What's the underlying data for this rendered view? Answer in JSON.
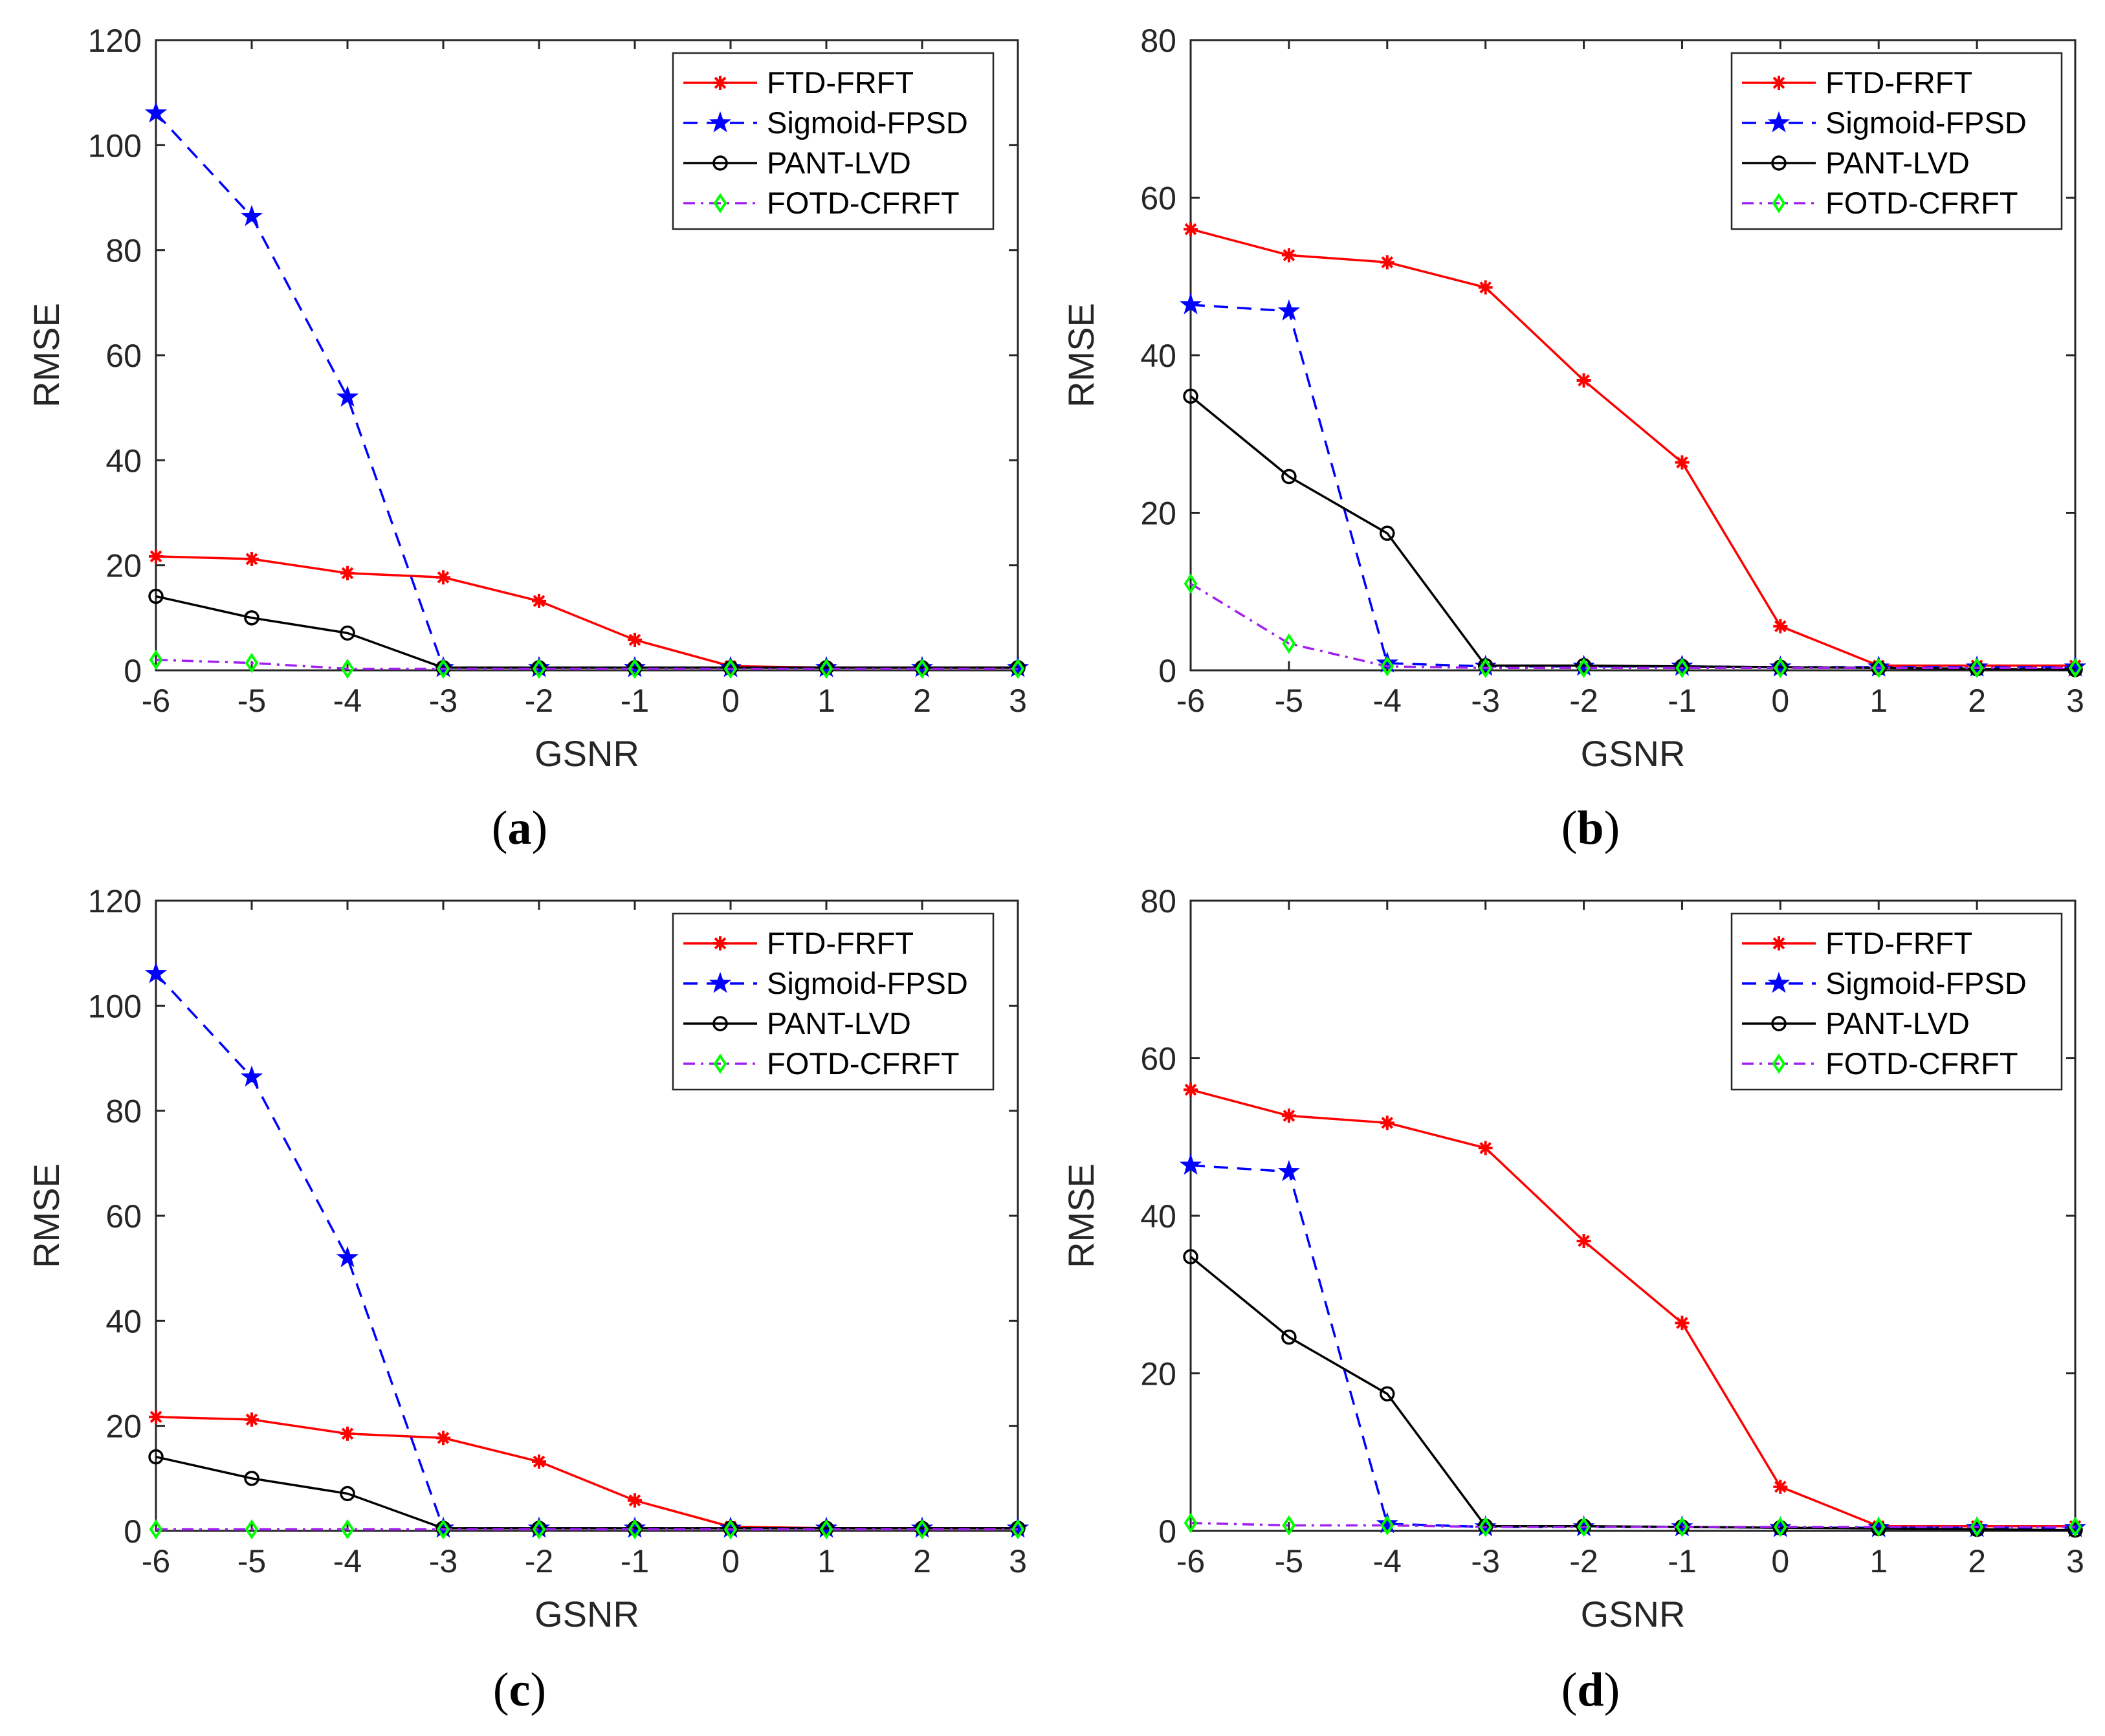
{
  "colors": {
    "ftd": "#ff0000",
    "sigmoid": "#0000ff",
    "pant": "#000000",
    "fotd_line": "#a020f0",
    "fotd_marker": "#00ff00",
    "axis": "#262626"
  },
  "charts": [
    {
      "panel": "a",
      "type": "line",
      "xlabel": "GSNR",
      "ylabel": "RMSE",
      "xlim": [
        -6,
        3
      ],
      "ylim": [
        0,
        120
      ],
      "xticks": [
        "-6",
        "-5",
        "-4",
        "-3",
        "-2",
        "-1",
        "0",
        "1",
        "2",
        "3"
      ],
      "yticks": [
        "0",
        "20",
        "40",
        "60",
        "80",
        "100",
        "120"
      ],
      "x": [
        -6,
        -5,
        -4,
        -3,
        -2,
        -1,
        0,
        1,
        2,
        3
      ],
      "series": [
        {
          "name": "FTD-FRFT",
          "values": [
            21.7,
            21.2,
            18.5,
            17.7,
            13.2,
            5.8,
            0.8,
            0.5,
            0.5,
            0.5
          ]
        },
        {
          "name": "Sigmoid-FPSD",
          "values": [
            106.1,
            86.4,
            52.0,
            0.5,
            0.5,
            0.5,
            0.5,
            0.5,
            0.5,
            0.5
          ]
        },
        {
          "name": "PANT-LVD",
          "values": [
            14.1,
            10.0,
            7.1,
            0.5,
            0.5,
            0.5,
            0.5,
            0.5,
            0.5,
            0.5
          ]
        },
        {
          "name": "FOTD-CFRFT",
          "values": [
            2.0,
            1.4,
            0.3,
            0.3,
            0.3,
            0.3,
            0.3,
            0.3,
            0.3,
            0.3
          ]
        }
      ]
    },
    {
      "panel": "b",
      "type": "line",
      "xlabel": "GSNR",
      "ylabel": "RMSE",
      "xlim": [
        -6,
        3
      ],
      "ylim": [
        0,
        80
      ],
      "xticks": [
        "-6",
        "-5",
        "-4",
        "-3",
        "-2",
        "-1",
        "0",
        "1",
        "2",
        "3"
      ],
      "yticks": [
        "0",
        "20",
        "40",
        "60",
        "80"
      ],
      "x": [
        -6,
        -5,
        -4,
        -3,
        -2,
        -1,
        0,
        1,
        2,
        3
      ],
      "series": [
        {
          "name": "FTD-FRFT",
          "values": [
            56.0,
            52.7,
            51.8,
            48.6,
            36.8,
            26.4,
            5.6,
            0.6,
            0.6,
            0.6
          ]
        },
        {
          "name": "Sigmoid-FPSD",
          "values": [
            46.4,
            45.6,
            0.9,
            0.5,
            0.5,
            0.5,
            0.4,
            0.4,
            0.4,
            0.4
          ]
        },
        {
          "name": "PANT-LVD",
          "values": [
            34.8,
            24.6,
            17.4,
            0.6,
            0.6,
            0.5,
            0.4,
            0.3,
            0.2,
            0.1
          ]
        },
        {
          "name": "FOTD-CFRFT",
          "values": [
            11.0,
            3.4,
            0.5,
            0.3,
            0.3,
            0.3,
            0.3,
            0.3,
            0.3,
            0.3
          ]
        }
      ]
    },
    {
      "panel": "c",
      "type": "line",
      "xlabel": "GSNR",
      "ylabel": "RMSE",
      "xlim": [
        -6,
        3
      ],
      "ylim": [
        0,
        120
      ],
      "xticks": [
        "-6",
        "-5",
        "-4",
        "-3",
        "-2",
        "-1",
        "0",
        "1",
        "2",
        "3"
      ],
      "yticks": [
        "0",
        "20",
        "40",
        "60",
        "80",
        "100",
        "120"
      ],
      "x": [
        -6,
        -5,
        -4,
        -3,
        -2,
        -1,
        0,
        1,
        2,
        3
      ],
      "series": [
        {
          "name": "FTD-FRFT",
          "values": [
            21.7,
            21.2,
            18.5,
            17.7,
            13.2,
            5.8,
            0.8,
            0.5,
            0.5,
            0.5
          ]
        },
        {
          "name": "Sigmoid-FPSD",
          "values": [
            106.1,
            86.4,
            52.0,
            0.5,
            0.5,
            0.5,
            0.5,
            0.5,
            0.5,
            0.5
          ]
        },
        {
          "name": "PANT-LVD",
          "values": [
            14.1,
            10.0,
            7.1,
            0.5,
            0.5,
            0.5,
            0.5,
            0.5,
            0.5,
            0.5
          ]
        },
        {
          "name": "FOTD-CFRFT",
          "values": [
            0.3,
            0.3,
            0.3,
            0.3,
            0.3,
            0.3,
            0.3,
            0.3,
            0.3,
            0.3
          ]
        }
      ]
    },
    {
      "panel": "d",
      "type": "line",
      "xlabel": "GSNR",
      "ylabel": "RMSE",
      "xlim": [
        -6,
        3
      ],
      "ylim": [
        0,
        80
      ],
      "xticks": [
        "-6",
        "-5",
        "-4",
        "-3",
        "-2",
        "-1",
        "0",
        "1",
        "2",
        "3"
      ],
      "yticks": [
        "0",
        "20",
        "40",
        "60",
        "80"
      ],
      "x": [
        -6,
        -5,
        -4,
        -3,
        -2,
        -1,
        0,
        1,
        2,
        3
      ],
      "series": [
        {
          "name": "FTD-FRFT",
          "values": [
            56.0,
            52.7,
            51.8,
            48.6,
            36.8,
            26.4,
            5.6,
            0.6,
            0.6,
            0.6
          ]
        },
        {
          "name": "Sigmoid-FPSD",
          "values": [
            46.4,
            45.6,
            0.9,
            0.5,
            0.5,
            0.5,
            0.4,
            0.4,
            0.4,
            0.4
          ]
        },
        {
          "name": "PANT-LVD",
          "values": [
            34.8,
            24.6,
            17.4,
            0.6,
            0.6,
            0.5,
            0.4,
            0.3,
            0.2,
            0.1
          ]
        },
        {
          "name": "FOTD-CFRFT",
          "values": [
            1.0,
            0.7,
            0.7,
            0.5,
            0.5,
            0.5,
            0.5,
            0.5,
            0.5,
            0.5
          ]
        }
      ]
    }
  ],
  "captions": [
    {
      "open": "(",
      "letter": "a",
      "close": ")"
    },
    {
      "open": "(",
      "letter": "b",
      "close": ")"
    },
    {
      "open": "(",
      "letter": "c",
      "close": ")"
    },
    {
      "open": "(",
      "letter": "d",
      "close": ")"
    }
  ]
}
